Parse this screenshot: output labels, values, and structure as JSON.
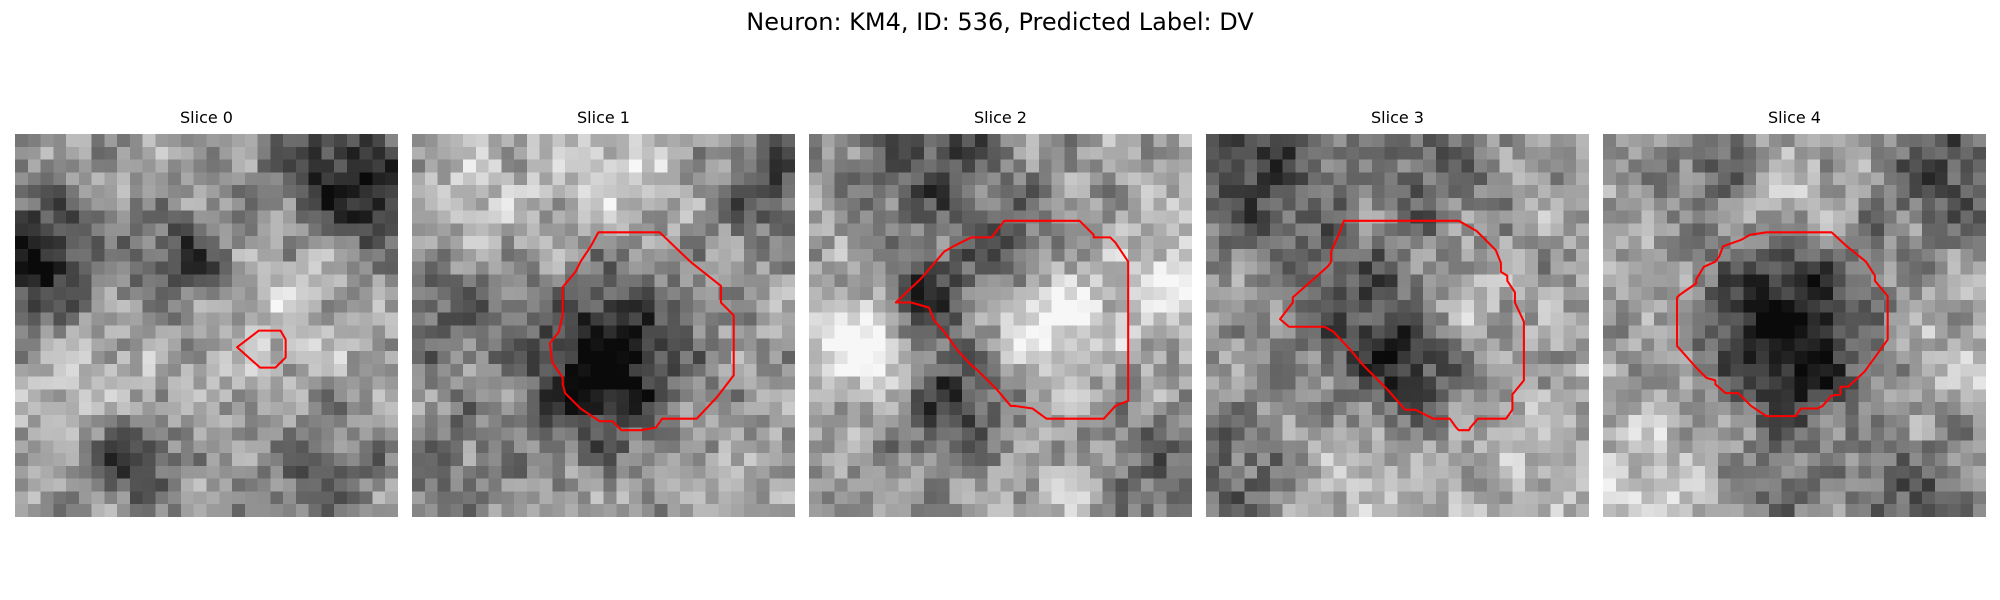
{
  "title": "Neuron: KM4, ID: 536, Predicted Label: DV",
  "grid_size": 30,
  "panels": [
    {
      "title": "Slice 0",
      "seed": 11,
      "blobs": [
        {
          "x": 1.5,
          "y": 10,
          "s": 3.5,
          "a": -0.55
        },
        {
          "x": 13.5,
          "y": 10,
          "s": 2.6,
          "a": -0.4
        },
        {
          "x": 24,
          "y": 3,
          "s": 3.2,
          "a": -0.35
        },
        {
          "x": 29,
          "y": 5,
          "s": 3,
          "a": -0.4
        },
        {
          "x": 9,
          "y": 25.5,
          "s": 2.2,
          "a": -0.5
        },
        {
          "x": 24,
          "y": 27,
          "s": 4,
          "a": -0.2
        },
        {
          "x": 6,
          "y": 20,
          "s": 4,
          "a": 0.12
        },
        {
          "x": 21,
          "y": 14,
          "s": 4,
          "a": 0.15
        }
      ],
      "contour": [
        [
          17.4,
          16.7
        ],
        [
          19.1,
          15.4
        ],
        [
          20.8,
          15.4
        ],
        [
          21.2,
          16.1
        ],
        [
          21.2,
          17.5
        ],
        [
          20.4,
          18.3
        ],
        [
          19.2,
          18.3
        ]
      ]
    },
    {
      "title": "Slice 1",
      "seed": 23,
      "blobs": [
        {
          "x": 15.5,
          "y": 17,
          "s": 4,
          "a": -0.55
        },
        {
          "x": 14,
          "y": 21,
          "s": 3,
          "a": -0.25
        },
        {
          "x": 3,
          "y": 14,
          "s": 3.2,
          "a": -0.25
        },
        {
          "x": 28,
          "y": 4,
          "s": 3,
          "a": -0.3
        },
        {
          "x": 16,
          "y": 2,
          "s": 4,
          "a": 0.18
        },
        {
          "x": 5,
          "y": 5,
          "s": 4,
          "a": 0.12
        },
        {
          "x": 3,
          "y": 26,
          "s": 4,
          "a": -0.15
        }
      ],
      "contour": [
        [
          14.6,
          7.7
        ],
        [
          19.4,
          7.7
        ],
        [
          21.8,
          10.0
        ],
        [
          24.2,
          11.9
        ],
        [
          24.2,
          13.2
        ],
        [
          25.2,
          14.2
        ],
        [
          25.2,
          18.9
        ],
        [
          23.9,
          20.6
        ],
        [
          22.3,
          22.3
        ],
        [
          21.6,
          22.3
        ],
        [
          19.6,
          22.3
        ],
        [
          19.1,
          23.0
        ],
        [
          17.9,
          23.2
        ],
        [
          17.4,
          23.2
        ],
        [
          16.4,
          23.2
        ],
        [
          15.7,
          22.5
        ],
        [
          14.7,
          22.5
        ],
        [
          13.2,
          21.5
        ],
        [
          12.0,
          20.3
        ],
        [
          11.8,
          19.6
        ],
        [
          11.8,
          19.1
        ],
        [
          11.0,
          17.9
        ],
        [
          10.8,
          16.4
        ],
        [
          11.5,
          15.5
        ],
        [
          11.8,
          14.2
        ],
        [
          11.8,
          12.0
        ],
        [
          12.8,
          10.8
        ],
        [
          13.2,
          10.0
        ],
        [
          14.0,
          8.8
        ]
      ]
    },
    {
      "title": "Slice 2",
      "seed": 37,
      "blobs": [
        {
          "x": 4.5,
          "y": 16.5,
          "s": 2.6,
          "a": 0.5
        },
        {
          "x": 8.5,
          "y": 13,
          "s": 2.4,
          "a": -0.45
        },
        {
          "x": 11.5,
          "y": 21,
          "s": 3,
          "a": -0.4
        },
        {
          "x": 18.5,
          "y": 14.5,
          "s": 3.2,
          "a": 0.4
        },
        {
          "x": 16,
          "y": 10,
          "s": 3,
          "a": -0.3
        },
        {
          "x": 26,
          "y": 27,
          "s": 4,
          "a": -0.3
        },
        {
          "x": 10,
          "y": 2,
          "s": 4,
          "a": -0.35
        },
        {
          "x": 29,
          "y": 12,
          "s": 3.5,
          "a": 0.25
        },
        {
          "x": 22,
          "y": 28,
          "s": 3.5,
          "a": 0.2
        }
      ],
      "contour": [
        [
          15.3,
          6.8
        ],
        [
          21.2,
          6.8
        ],
        [
          22.3,
          7.9
        ],
        [
          22.3,
          8.1
        ],
        [
          23.6,
          8.1
        ],
        [
          24.0,
          8.5
        ],
        [
          25.0,
          10.0
        ],
        [
          25.0,
          20.9
        ],
        [
          24.0,
          21.3
        ],
        [
          23.1,
          22.3
        ],
        [
          21.6,
          22.3
        ],
        [
          18.6,
          22.3
        ],
        [
          17.5,
          21.5
        ],
        [
          16.1,
          21.3
        ],
        [
          15.8,
          21.3
        ],
        [
          14.7,
          20.0
        ],
        [
          13.2,
          18.5
        ],
        [
          12.7,
          18.1
        ],
        [
          11.6,
          16.9
        ],
        [
          10.6,
          15.5
        ],
        [
          9.8,
          14.6
        ],
        [
          9.4,
          13.6
        ],
        [
          8.0,
          13.2
        ],
        [
          6.8,
          13.2
        ],
        [
          8.8,
          11.3
        ],
        [
          10.6,
          9.2
        ],
        [
          11.3,
          8.8
        ],
        [
          12.7,
          8.1
        ],
        [
          14.3,
          8.1
        ]
      ]
    },
    {
      "title": "Slice 3",
      "seed": 53,
      "blobs": [
        {
          "x": 13,
          "y": 14,
          "s": 4.5,
          "a": -0.3
        },
        {
          "x": 16,
          "y": 19,
          "s": 3,
          "a": -0.3
        },
        {
          "x": 4,
          "y": 3,
          "s": 4.5,
          "a": -0.35
        },
        {
          "x": 18,
          "y": 3,
          "s": 3,
          "a": -0.25
        },
        {
          "x": 2,
          "y": 27,
          "s": 4,
          "a": -0.25
        },
        {
          "x": 20,
          "y": 13,
          "s": 2.5,
          "a": 0.2
        },
        {
          "x": 27,
          "y": 25,
          "s": 4,
          "a": 0.12
        },
        {
          "x": 12,
          "y": 27,
          "s": 4,
          "a": 0.12
        }
      ],
      "contour": [
        [
          10.8,
          6.8
        ],
        [
          19.8,
          6.8
        ],
        [
          21.2,
          7.6
        ],
        [
          22.7,
          9.1
        ],
        [
          23.1,
          10.1
        ],
        [
          23.1,
          10.8
        ],
        [
          23.6,
          11.1
        ],
        [
          23.6,
          11.5
        ],
        [
          24.2,
          12.4
        ],
        [
          24.2,
          13.2
        ],
        [
          24.9,
          14.7
        ],
        [
          24.9,
          19.3
        ],
        [
          24.0,
          20.4
        ],
        [
          24.0,
          21.6
        ],
        [
          23.5,
          22.3
        ],
        [
          22.3,
          22.3
        ],
        [
          21.3,
          22.3
        ],
        [
          20.7,
          23.0
        ],
        [
          20.6,
          23.2
        ],
        [
          19.8,
          23.2
        ],
        [
          19.6,
          23.0
        ],
        [
          19.1,
          22.3
        ],
        [
          17.8,
          22.3
        ],
        [
          16.4,
          21.6
        ],
        [
          15.6,
          21.6
        ],
        [
          14.2,
          20.0
        ],
        [
          12.8,
          18.6
        ],
        [
          12.3,
          18.1
        ],
        [
          11.3,
          16.9
        ],
        [
          10.0,
          15.5
        ],
        [
          9.3,
          15.1
        ],
        [
          6.5,
          15.1
        ],
        [
          5.8,
          14.5
        ],
        [
          6.8,
          13.2
        ],
        [
          6.8,
          12.8
        ],
        [
          9.4,
          10.5
        ],
        [
          9.6,
          10.3
        ],
        [
          9.8,
          10.0
        ],
        [
          9.8,
          9.2
        ],
        [
          10.4,
          7.9
        ]
      ]
    },
    {
      "title": "Slice 4",
      "seed": 71,
      "blobs": [
        {
          "x": 14.5,
          "y": 14.5,
          "s": 4.5,
          "a": -0.55
        },
        {
          "x": 15,
          "y": 20,
          "s": 3,
          "a": -0.2
        },
        {
          "x": 27,
          "y": 3,
          "s": 3.5,
          "a": -0.35
        },
        {
          "x": 9,
          "y": 2,
          "s": 2.5,
          "a": -0.25
        },
        {
          "x": 25,
          "y": 29,
          "s": 4,
          "a": -0.25
        },
        {
          "x": 4,
          "y": 28,
          "s": 4,
          "a": 0.2
        },
        {
          "x": 29,
          "y": 18,
          "s": 4,
          "a": 0.12
        },
        {
          "x": 15,
          "y": 5,
          "s": 3,
          "a": 0.15
        },
        {
          "x": 13,
          "y": 28,
          "s": 2.5,
          "a": -0.2
        }
      ],
      "contour": [
        [
          12.8,
          7.7
        ],
        [
          17.9,
          7.7
        ],
        [
          19.1,
          8.8
        ],
        [
          20.6,
          10.0
        ],
        [
          21.3,
          11.1
        ],
        [
          21.3,
          11.5
        ],
        [
          22.3,
          12.7
        ],
        [
          22.3,
          14.0
        ],
        [
          22.3,
          14.2
        ],
        [
          22.3,
          15.6
        ],
        [
          22.3,
          16.1
        ],
        [
          20.5,
          18.6
        ],
        [
          19.2,
          19.8
        ],
        [
          18.6,
          19.8
        ],
        [
          18.6,
          20.4
        ],
        [
          17.9,
          20.5
        ],
        [
          17.2,
          21.3
        ],
        [
          16.8,
          21.5
        ],
        [
          15.5,
          21.5
        ],
        [
          15.1,
          22.1
        ],
        [
          12.8,
          22.1
        ],
        [
          11.6,
          21.3
        ],
        [
          10.6,
          20.3
        ],
        [
          9.6,
          20.3
        ],
        [
          8.8,
          19.6
        ],
        [
          8.8,
          19.3
        ],
        [
          8.1,
          19.1
        ],
        [
          7.3,
          18.3
        ],
        [
          5.8,
          16.6
        ],
        [
          5.8,
          12.8
        ],
        [
          6.0,
          12.6
        ],
        [
          7.3,
          11.7
        ],
        [
          7.3,
          11.4
        ],
        [
          7.9,
          10.4
        ],
        [
          8.8,
          10.0
        ],
        [
          9.1,
          9.6
        ],
        [
          9.4,
          8.8
        ],
        [
          10.8,
          8.3
        ],
        [
          11.5,
          7.9
        ]
      ]
    }
  ]
}
